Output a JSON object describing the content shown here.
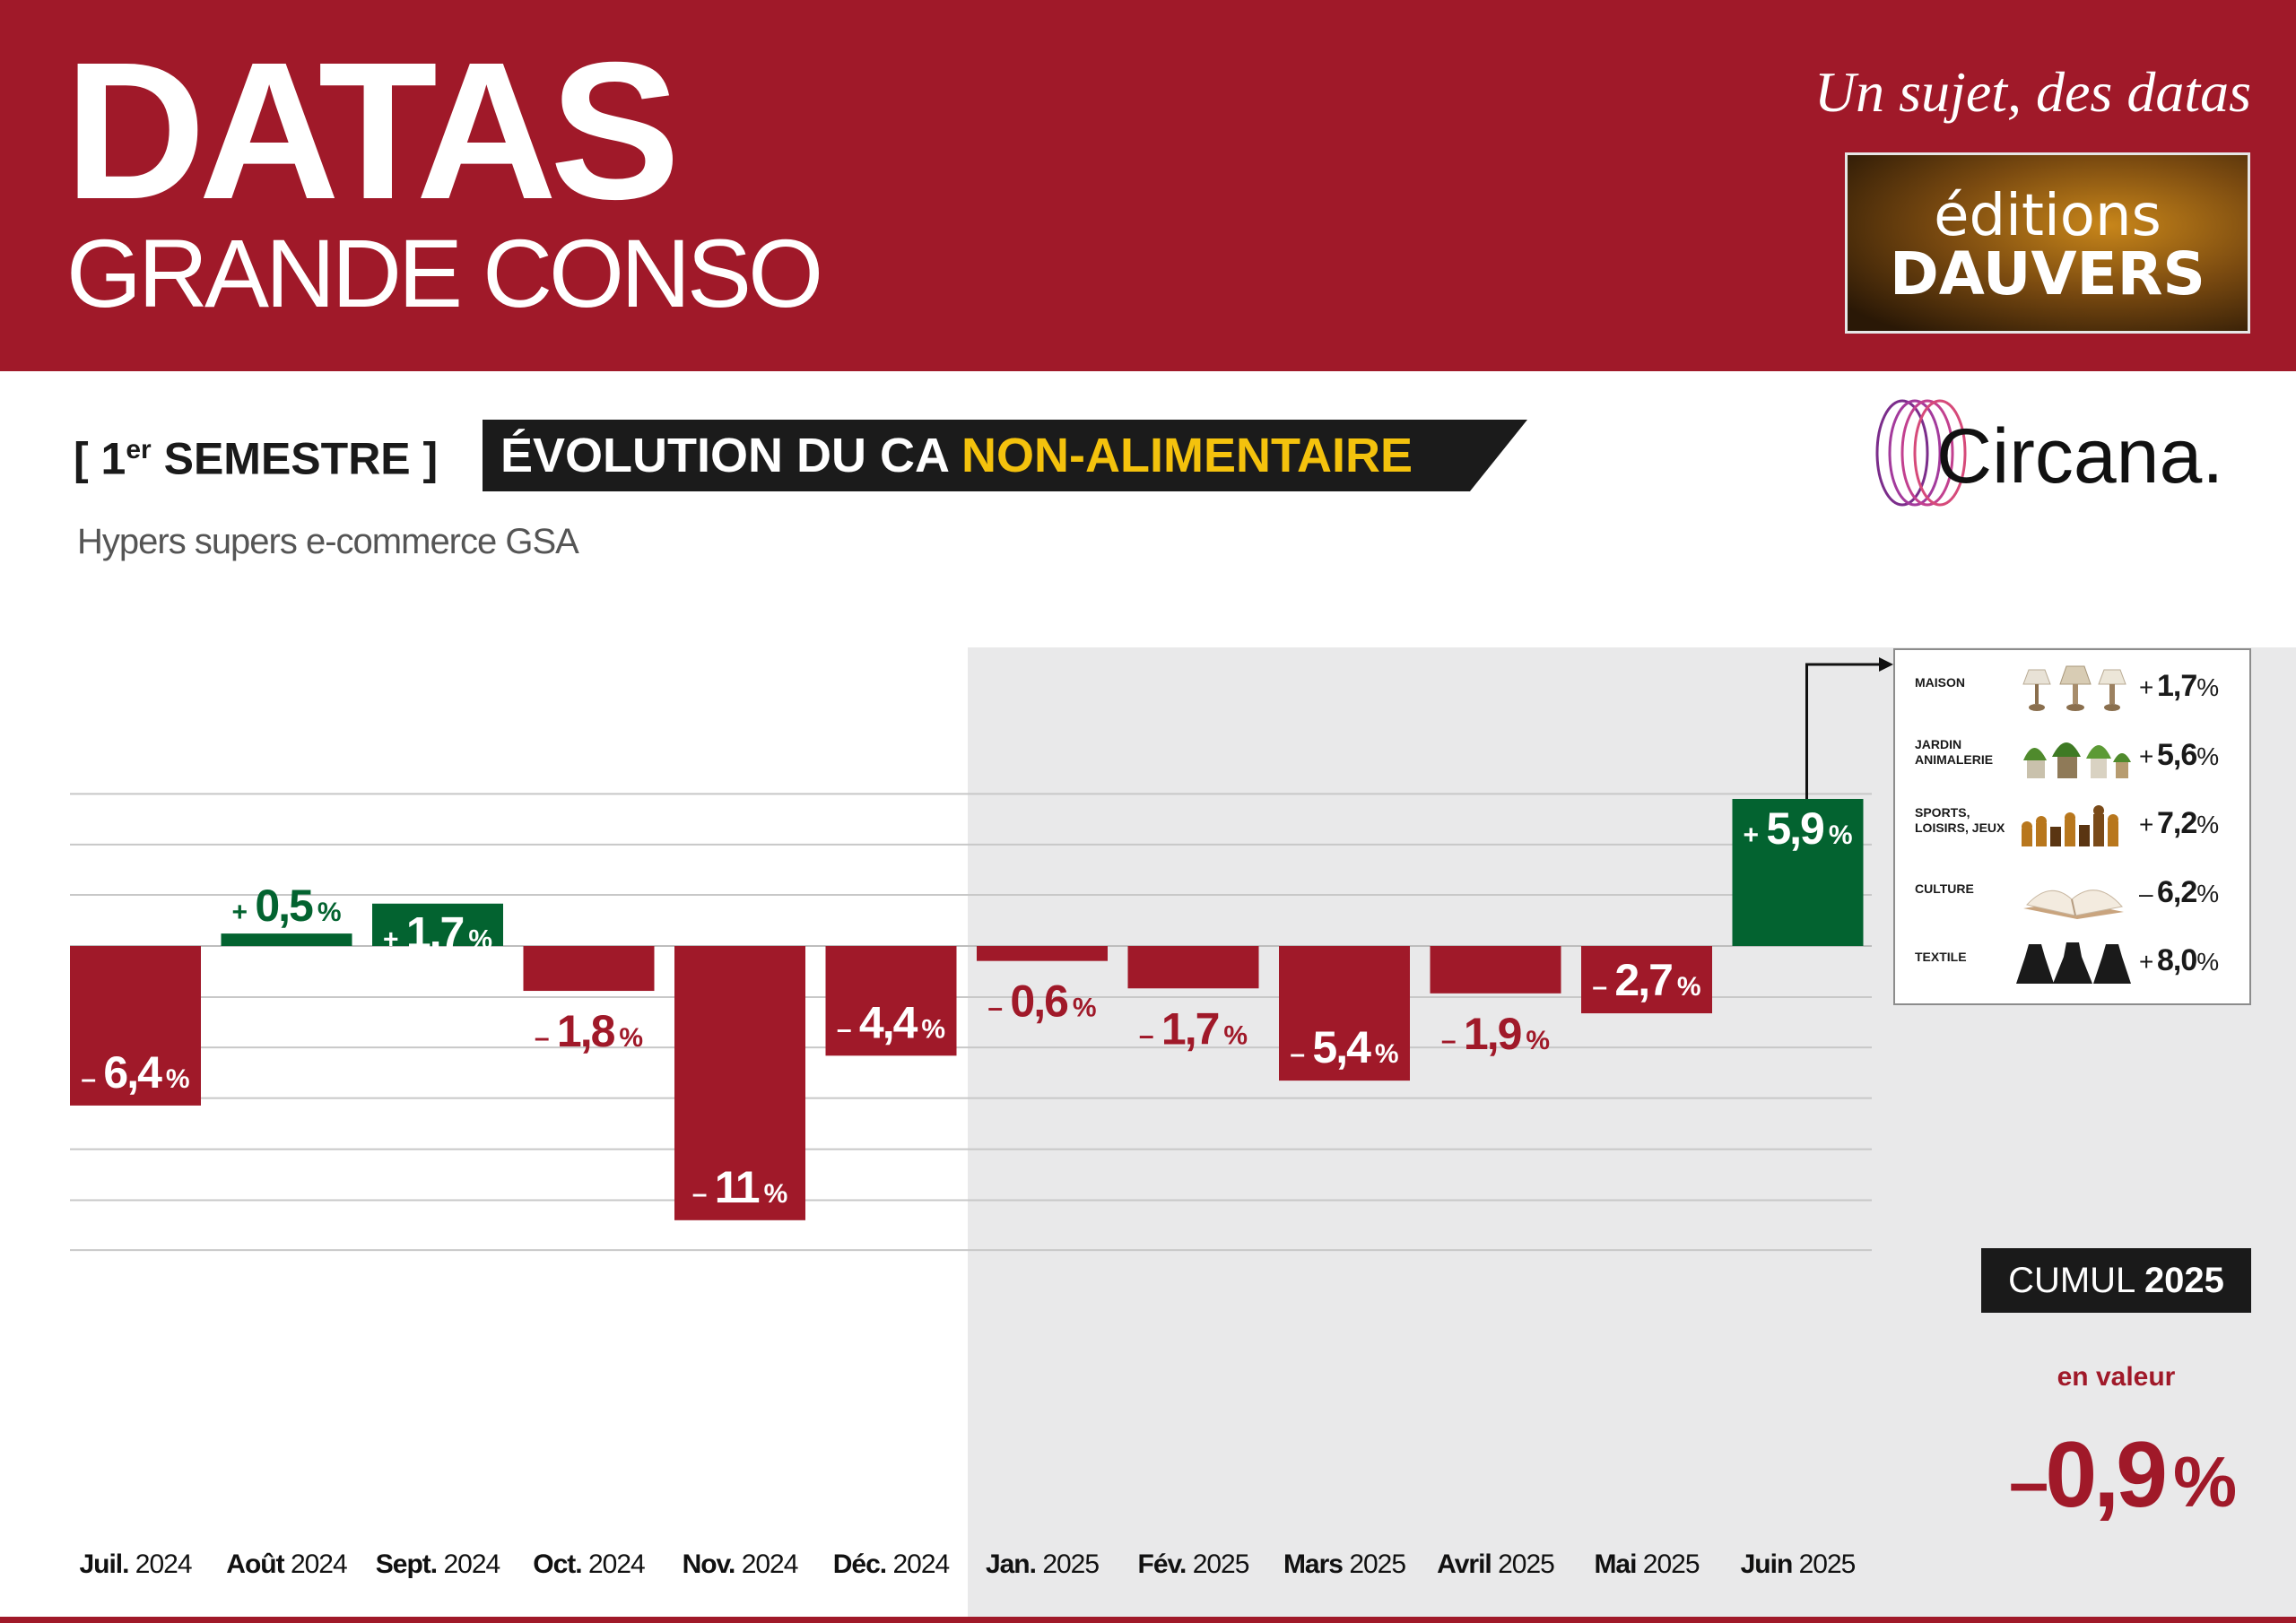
{
  "header": {
    "brand_title": "DATAS",
    "brand_subtitle": "GRANDE CONSO",
    "tagline": "Un sujet, des datas",
    "publisher_line1": "éditions",
    "publisher_line2": "DAUVERS"
  },
  "section": {
    "label_open": "[ 1",
    "label_sup": "er",
    "label_close": " SEMESTRE ]",
    "title_main": "ÉVOLUTION DU CA ",
    "title_highlight": "NON-ALIMENTAIRE",
    "source_logo": "Circana."
  },
  "chart_data": {
    "type": "bar",
    "subtitle": "Hypers supers e-commerce GSA",
    "unit": "%",
    "categories": [
      {
        "month": "Juil.",
        "year": "2024"
      },
      {
        "month": "Août",
        "year": "2024"
      },
      {
        "month": "Sept.",
        "year": "2024"
      },
      {
        "month": "Oct.",
        "year": "2024"
      },
      {
        "month": "Nov.",
        "year": "2024"
      },
      {
        "month": "Déc.",
        "year": "2024"
      },
      {
        "month": "Jan.",
        "year": "2025"
      },
      {
        "month": "Fév.",
        "year": "2025"
      },
      {
        "month": "Mars",
        "year": "2025"
      },
      {
        "month": "Avril",
        "year": "2025"
      },
      {
        "month": "Mai",
        "year": "2025"
      },
      {
        "month": "Juin",
        "year": "2025"
      }
    ],
    "values": [
      -6.4,
      0.5,
      1.7,
      -1.8,
      -11,
      -4.4,
      -0.6,
      -1.7,
      -5.4,
      -1.9,
      -2.7,
      5.9
    ],
    "value_labels": [
      "6,4",
      "0,5",
      "1,7",
      "1,8",
      "11",
      "4,4",
      "0,6",
      "1,7",
      "5,4",
      "1,9",
      "2,7",
      "5,9"
    ],
    "ylim": [
      -12.5,
      6
    ],
    "grid": true,
    "highlighted_period": "2025",
    "colors": {
      "positive": "#036330",
      "negative": "#a01929",
      "period_shade": "#e9e9ea"
    },
    "breakdown": {
      "month": "Juin 2025",
      "items": [
        {
          "label": "MAISON",
          "sign": "+",
          "value": "1,7",
          "icon": "lamp-icon"
        },
        {
          "label": "JARDIN ANIMALERIE",
          "sign": "+",
          "value": "5,6",
          "icon": "plant-icon"
        },
        {
          "label": "SPORTS, LOISIRS, JEUX",
          "sign": "+",
          "value": "7,2",
          "icon": "chess-icon"
        },
        {
          "label": "CULTURE",
          "sign": "–",
          "value": "6,2",
          "icon": "book-icon"
        },
        {
          "label": "TEXTILE",
          "sign": "+",
          "value": "8,0",
          "icon": "dress-icon"
        }
      ]
    }
  },
  "cumul": {
    "label": "CUMUL",
    "year": "2025",
    "sublabel": "en valeur",
    "sign": "–",
    "value": "0,9",
    "unit": "%"
  }
}
